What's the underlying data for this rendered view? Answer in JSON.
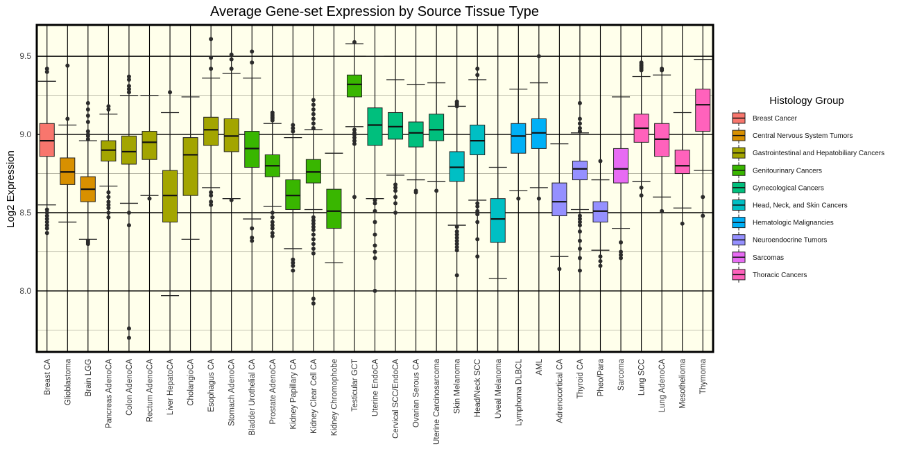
{
  "chart_data": {
    "type": "box",
    "title": "Average Gene-set Expression by Source Tissue Type",
    "ylabel": "Log2 Expression",
    "xlabel": "",
    "ylim": [
      7.61,
      9.7
    ],
    "yticks": [
      8.0,
      8.5,
      9.0,
      9.5
    ],
    "ytick_labels": [
      "8.0",
      "8.5",
      "9.0",
      "9.5"
    ],
    "grid": true,
    "legend": {
      "title": "Histology Group",
      "position": "right"
    },
    "groups": [
      {
        "name": "Breast Cancer",
        "color": "#F8766D"
      },
      {
        "name": "Central Nervous System Tumors",
        "color": "#D89000"
      },
      {
        "name": "Gastrointestinal and Hepatobiliary Cancers",
        "color": "#A3A500"
      },
      {
        "name": "Genitourinary Cancers",
        "color": "#39B600"
      },
      {
        "name": "Gynecological Cancers",
        "color": "#00BF7D"
      },
      {
        "name": "Head, Neck, and Skin Cancers",
        "color": "#00BFC4"
      },
      {
        "name": "Hematologic Malignancies",
        "color": "#00B0F6"
      },
      {
        "name": "Neuroendocrine Tumors",
        "color": "#9590FF"
      },
      {
        "name": "Sarcomas",
        "color": "#E76BF3"
      },
      {
        "name": "Thoracic Cancers",
        "color": "#FF62BC"
      }
    ],
    "boxes": [
      {
        "label": "Breast CA",
        "group": 0,
        "wlo": 8.55,
        "q1": 8.86,
        "med": 8.96,
        "q3": 9.07,
        "whi": 9.34,
        "out": [
          9.42,
          9.4,
          8.52,
          8.5,
          8.48,
          8.46,
          8.44,
          8.42,
          8.4,
          8.37
        ]
      },
      {
        "label": "Glioblastoma",
        "group": 1,
        "wlo": 8.44,
        "q1": 8.68,
        "med": 8.76,
        "q3": 8.85,
        "whi": 9.06,
        "out": [
          9.44,
          9.1
        ]
      },
      {
        "label": "Brain LGG",
        "group": 1,
        "wlo": 8.33,
        "q1": 8.57,
        "med": 8.65,
        "q3": 8.73,
        "whi": 8.96,
        "out": [
          9.2,
          9.16,
          9.12,
          9.08,
          9.02,
          9.0,
          8.99,
          8.97,
          8.32,
          8.31,
          8.3
        ]
      },
      {
        "label": "Pancreas AdenoCA",
        "group": 2,
        "wlo": 8.67,
        "q1": 8.83,
        "med": 8.9,
        "q3": 8.96,
        "whi": 9.13,
        "out": [
          9.18,
          9.16,
          8.63,
          8.6,
          8.57,
          8.55,
          8.53,
          8.5,
          8.47
        ]
      },
      {
        "label": "Colon AdenoCA",
        "group": 2,
        "wlo": 8.56,
        "q1": 8.81,
        "med": 8.89,
        "q3": 8.99,
        "whi": 9.25,
        "out": [
          9.37,
          9.35,
          9.31,
          9.29,
          9.27,
          8.5,
          8.42,
          7.76,
          7.7
        ]
      },
      {
        "label": "Rectum AdenoCA",
        "group": 2,
        "wlo": 8.61,
        "q1": 8.84,
        "med": 8.95,
        "q3": 9.02,
        "whi": 9.25,
        "out": [
          8.59
        ]
      },
      {
        "label": "Liver HepatoCA",
        "group": 2,
        "wlo": 7.97,
        "q1": 8.44,
        "med": 8.61,
        "q3": 8.77,
        "whi": 9.14,
        "out": [
          9.27
        ]
      },
      {
        "label": "CholangioCA",
        "group": 2,
        "wlo": 8.33,
        "q1": 8.61,
        "med": 8.87,
        "q3": 8.98,
        "whi": 9.24,
        "out": []
      },
      {
        "label": "Esophagus CA",
        "group": 2,
        "wlo": 8.66,
        "q1": 8.93,
        "med": 9.03,
        "q3": 9.11,
        "whi": 9.36,
        "out": [
          9.61,
          9.49,
          9.42,
          8.63,
          8.61,
          8.57,
          8.55
        ]
      },
      {
        "label": "Stomach AdenoCA",
        "group": 2,
        "wlo": 8.59,
        "q1": 8.89,
        "med": 8.99,
        "q3": 9.1,
        "whi": 9.39,
        "out": [
          9.51,
          9.48,
          9.42,
          8.58
        ]
      },
      {
        "label": "Bladder Urothelial CA",
        "group": 3,
        "wlo": 8.46,
        "q1": 8.79,
        "med": 8.91,
        "q3": 9.02,
        "whi": 9.36,
        "out": [
          9.53,
          9.46,
          8.4,
          8.34,
          8.32
        ]
      },
      {
        "label": "Prostate AdenoCA",
        "group": 3,
        "wlo": 8.54,
        "q1": 8.73,
        "med": 8.8,
        "q3": 8.87,
        "whi": 9.07,
        "out": [
          9.14,
          9.13,
          9.12,
          9.11,
          9.1,
          9.09,
          8.5,
          8.47,
          8.44,
          8.42,
          8.4,
          8.37,
          8.35
        ]
      },
      {
        "label": "Kidney Papillary CA",
        "group": 3,
        "wlo": 8.27,
        "q1": 8.52,
        "med": 8.61,
        "q3": 8.71,
        "whi": 8.98,
        "out": [
          9.06,
          9.04,
          9.02,
          8.2,
          8.18,
          8.16,
          8.13
        ]
      },
      {
        "label": "Kidney Clear Cell CA",
        "group": 3,
        "wlo": 8.52,
        "q1": 8.69,
        "med": 8.76,
        "q3": 8.84,
        "whi": 9.03,
        "out": [
          9.22,
          9.19,
          9.16,
          9.13,
          9.1,
          9.07,
          9.04,
          8.47,
          8.45,
          8.43,
          8.41,
          8.39,
          8.36,
          8.33,
          8.3,
          8.27,
          8.24,
          7.95,
          7.92
        ]
      },
      {
        "label": "Kidney Chromophobe",
        "group": 3,
        "wlo": 8.18,
        "q1": 8.4,
        "med": 8.51,
        "q3": 8.65,
        "whi": 8.88,
        "out": []
      },
      {
        "label": "Testicular GCT",
        "group": 3,
        "wlo": 9.05,
        "q1": 9.24,
        "med": 9.32,
        "q3": 9.38,
        "whi": 9.58,
        "out": [
          9.59,
          9.03,
          9.01,
          9.0,
          8.98,
          8.96,
          8.94,
          8.6
        ]
      },
      {
        "label": "Uterine EndoCA",
        "group": 4,
        "wlo": 8.59,
        "q1": 8.93,
        "med": 9.06,
        "q3": 9.17,
        "whi": 9.5,
        "out": [
          8.58,
          8.56,
          8.51,
          8.44,
          8.36,
          8.29,
          8.25,
          8.21,
          8.0
        ]
      },
      {
        "label": "Cervical SCC/EndoCA",
        "group": 4,
        "wlo": 8.74,
        "q1": 8.97,
        "med": 9.05,
        "q3": 9.14,
        "whi": 9.35,
        "out": [
          8.68,
          8.66,
          8.64,
          8.6,
          8.56,
          8.5
        ]
      },
      {
        "label": "Ovarian Serous CA",
        "group": 4,
        "wlo": 8.71,
        "q1": 8.92,
        "med": 9.01,
        "q3": 9.08,
        "whi": 9.32,
        "out": [
          8.64,
          8.63
        ]
      },
      {
        "label": "Uterine Carcinosarcoma",
        "group": 4,
        "wlo": 8.7,
        "q1": 8.96,
        "med": 9.03,
        "q3": 9.13,
        "whi": 9.33,
        "out": [
          8.64
        ]
      },
      {
        "label": "Skin Melanoma",
        "group": 5,
        "wlo": 8.42,
        "q1": 8.7,
        "med": 8.79,
        "q3": 8.89,
        "whi": 9.18,
        "out": [
          9.21,
          9.2,
          9.19,
          9.18,
          8.41,
          8.38,
          8.36,
          8.34,
          8.32,
          8.3,
          8.28,
          8.26,
          8.1
        ]
      },
      {
        "label": "Head/Neck SCC",
        "group": 5,
        "wlo": 8.58,
        "q1": 8.87,
        "med": 8.96,
        "q3": 9.06,
        "whi": 9.35,
        "out": [
          9.42,
          9.38,
          8.56,
          8.54,
          8.51,
          8.49,
          8.44,
          8.33,
          8.22
        ]
      },
      {
        "label": "Uveal Melanoma",
        "group": 5,
        "wlo": 8.08,
        "q1": 8.31,
        "med": 8.46,
        "q3": 8.59,
        "whi": 8.79,
        "out": []
      },
      {
        "label": "Lymphoma DLBCL",
        "group": 6,
        "wlo": 8.64,
        "q1": 8.88,
        "med": 8.99,
        "q3": 9.07,
        "whi": 9.29,
        "out": [
          8.59
        ]
      },
      {
        "label": "AML",
        "group": 6,
        "wlo": 8.66,
        "q1": 8.91,
        "med": 9.01,
        "q3": 9.1,
        "whi": 9.33,
        "out": [
          9.5,
          8.59
        ]
      },
      {
        "label": "Adrenocortical CA",
        "group": 7,
        "wlo": 8.22,
        "q1": 8.48,
        "med": 8.57,
        "q3": 8.69,
        "whi": 8.94,
        "out": [
          8.14
        ]
      },
      {
        "label": "Thyroid CA",
        "group": 7,
        "wlo": 8.52,
        "q1": 8.71,
        "med": 8.78,
        "q3": 8.83,
        "whi": 9.01,
        "out": [
          9.2,
          9.1,
          9.07,
          9.04,
          9.02,
          8.48,
          8.46,
          8.44,
          8.42,
          8.38,
          8.32,
          8.27,
          8.21,
          8.13
        ]
      },
      {
        "label": "Pheo/Para",
        "group": 7,
        "wlo": 8.26,
        "q1": 8.44,
        "med": 8.51,
        "q3": 8.57,
        "whi": 8.71,
        "out": [
          8.83,
          8.22,
          8.19,
          8.16
        ]
      },
      {
        "label": "Sarcoma",
        "group": 8,
        "wlo": 8.4,
        "q1": 8.69,
        "med": 8.78,
        "q3": 8.91,
        "whi": 9.24,
        "out": [
          8.31,
          8.25,
          8.23,
          8.21
        ]
      },
      {
        "label": "Lung SCC",
        "group": 9,
        "wlo": 8.7,
        "q1": 8.95,
        "med": 9.04,
        "q3": 9.13,
        "whi": 9.37,
        "out": [
          9.46,
          9.45,
          9.44,
          9.43,
          9.42,
          9.41,
          8.66,
          8.61
        ]
      },
      {
        "label": "Lung AdenoCA",
        "group": 9,
        "wlo": 8.6,
        "q1": 8.86,
        "med": 8.97,
        "q3": 9.07,
        "whi": 9.38,
        "out": [
          9.42,
          9.41,
          8.51
        ]
      },
      {
        "label": "Mesothelioma",
        "group": 9,
        "wlo": 8.53,
        "q1": 8.75,
        "med": 8.8,
        "q3": 8.9,
        "whi": 9.14,
        "out": [
          8.43
        ]
      },
      {
        "label": "Thymoma",
        "group": 9,
        "wlo": 8.77,
        "q1": 9.02,
        "med": 9.19,
        "q3": 9.29,
        "whi": 9.48,
        "out": [
          8.6,
          8.48
        ]
      }
    ]
  }
}
